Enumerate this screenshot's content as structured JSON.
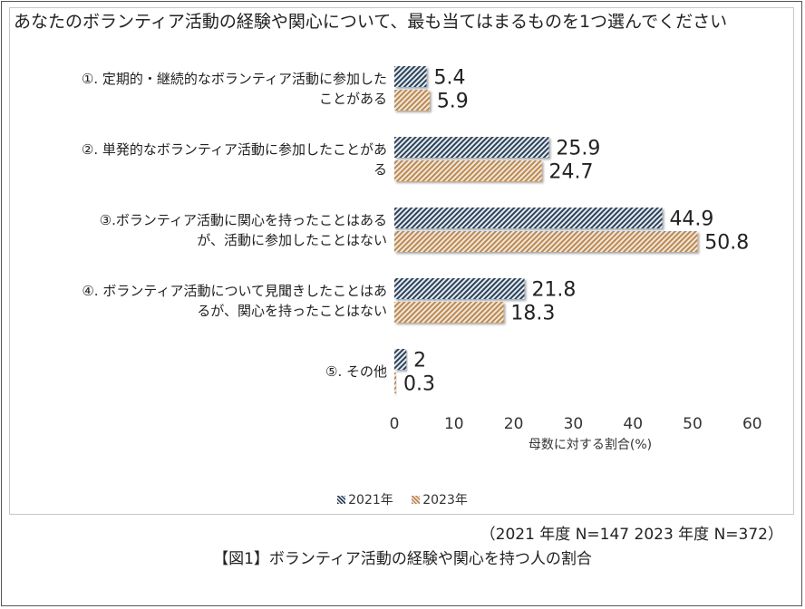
{
  "chart_data": {
    "type": "bar",
    "orientation": "horizontal",
    "title": "あなたのボランティア活動の経験や関心について、最も当てはまるものを1つ選んでください",
    "categories": [
      "①. 定期的・継続的なボランティア活動に参加したことがある",
      "②. 単発的なボランティア活動に参加したことがある",
      "③.ボランティア活動に関心を持ったことはあるが、活動に参加したことはない",
      "④. ボランティア活動について見聞きしたことはあるが、関心を持ったことはない",
      "⑤. その他"
    ],
    "series": [
      {
        "name": "2021年",
        "values": [
          5.4,
          25.9,
          44.9,
          21.8,
          2
        ],
        "value_labels": [
          "5.4",
          "25.9",
          "44.9",
          "21.8",
          "2"
        ]
      },
      {
        "name": "2023年",
        "values": [
          5.9,
          24.7,
          50.8,
          18.3,
          0.3
        ],
        "value_labels": [
          "5.9",
          "24.7",
          "50.8",
          "18.3",
          "0.3"
        ]
      }
    ],
    "xlabel": "母数に対する割合(%)",
    "ylabel": "",
    "xlim": [
      0,
      60
    ],
    "ticks": [
      0,
      10,
      20,
      30,
      40,
      50,
      60
    ],
    "tick_labels": [
      "0",
      "10",
      "20",
      "30",
      "40",
      "50",
      "60"
    ],
    "grid": false,
    "legend_position": "bottom",
    "colors": {
      "2021年": "#2d4258",
      "2023年": "#b78a5a"
    }
  },
  "labels": [
    [
      "①. 定期的・継続的なボランティア活動に参加した",
      "ことがある"
    ],
    [
      "②. 単発的なボランティア活動に参加したことがあ",
      "る"
    ],
    [
      "③.ボランティア活動に関心を持ったことはある",
      "が、活動に参加したことはない"
    ],
    [
      "④. ボランティア活動について見聞きしたことはあ",
      "るが、関心を持ったことはない"
    ],
    [
      "⑤. その他"
    ]
  ],
  "note": "（2021 年度  N=147  2023 年度  N=372）",
  "caption": "【図1】ボランティア活動の経験や関心を持つ人の割合"
}
